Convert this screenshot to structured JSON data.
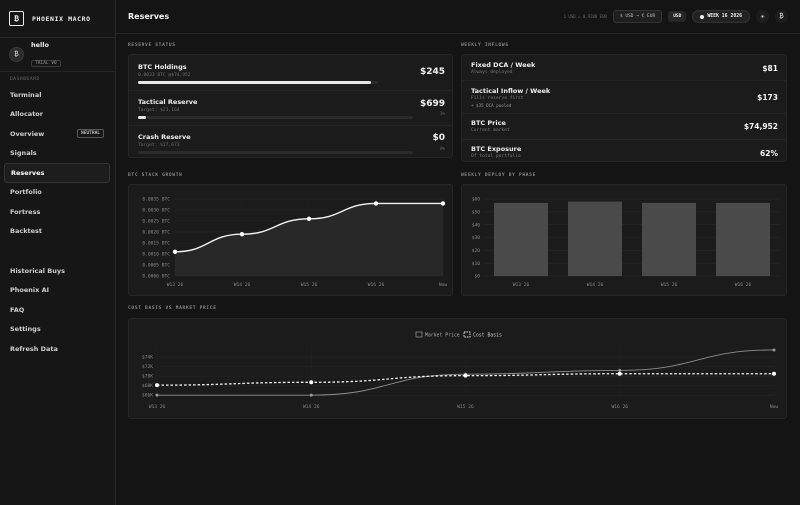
{
  "app": {
    "brand": "PHOENIX MACRO",
    "logo_glyph": "₿"
  },
  "user": {
    "avatar_glyph": "₿",
    "name": "hello",
    "badge": "TRIAL V0"
  },
  "sidebar": {
    "section_label": "DASHBOARD",
    "items": [
      {
        "label": "Terminal"
      },
      {
        "label": "Allocator"
      },
      {
        "label": "Overview",
        "badge": "NEUTRAL"
      },
      {
        "label": "Signals"
      },
      {
        "label": "Reserves",
        "active": true
      },
      {
        "label": "Portfolio"
      },
      {
        "label": "Fortress"
      },
      {
        "label": "Backtest"
      }
    ],
    "lower_items": [
      {
        "label": "Historical Buys"
      },
      {
        "label": "Phoenix AI"
      },
      {
        "label": "FAQ"
      },
      {
        "label": "Settings"
      },
      {
        "label": "Refresh Data"
      }
    ]
  },
  "header": {
    "title": "Reserves",
    "rate": "1 USD = 0.9200 EUR",
    "currency_toggle": "$ USD → € EUR",
    "currency": "USD",
    "week": "WEEK 16 2026",
    "theme_icon": "sun-icon",
    "btc_icon": "bitcoin-icon",
    "theme_glyph": "☀",
    "btc_glyph": "₿"
  },
  "reserve_status": {
    "title": "RESERVE STATUS",
    "rows": [
      {
        "name": "BTC Holdings",
        "sub": "0.0033 BTC @$74,952",
        "value": "$245",
        "pct": "",
        "progress": 0.97
      },
      {
        "name": "Tactical Reserve",
        "sub": "Target: $21,164",
        "value": "$699",
        "pct": "3%",
        "progress": 0.03
      },
      {
        "name": "Crash Reserve",
        "sub": "Target: $17,673",
        "value": "$0",
        "pct": "0%",
        "progress": 0
      }
    ]
  },
  "weekly_inflows": {
    "title": "WEEKLY INFLOWS",
    "rows": [
      {
        "name": "Fixed DCA / Week",
        "sub": "Always deployed",
        "sub2": "",
        "value": "$81"
      },
      {
        "name": "Tactical Inflow / Week",
        "sub": "Fills reserve first",
        "sub2": "+ $35 DCA pooled",
        "value": "$173"
      },
      {
        "name": "BTC Price",
        "sub": "Current market",
        "sub2": "",
        "value": "$74,952"
      },
      {
        "name": "BTC Exposure",
        "sub": "Of total portfolio",
        "sub2": "",
        "value": "62%"
      }
    ]
  },
  "charts": {
    "stack_title": "BTC STACK GROWTH",
    "deploy_title": "WEEKLY DEPLOY BY PHASE",
    "basis_title": "COST BASIS VS MARKET PRICE"
  },
  "chart_data": [
    {
      "type": "area",
      "categories": [
        "W13 26",
        "W14 26",
        "W15 26",
        "W16 26",
        "Now"
      ],
      "values": [
        0.0011,
        0.0019,
        0.0026,
        0.0033,
        0.0033
      ],
      "ticks": [
        "0.0035 BTC",
        "0.0030 BTC",
        "0.0025 BTC",
        "0.0020 BTC",
        "0.0015 BTC",
        "0.0010 BTC",
        "0.0005 BTC",
        "0.0000 BTC"
      ],
      "ylim": [
        0,
        0.0035
      ],
      "grid": true
    },
    {
      "type": "bar",
      "categories": [
        "W13 26",
        "W14 26",
        "W15 26",
        "W16 26"
      ],
      "values": [
        57,
        58,
        57,
        57
      ],
      "ticks": [
        "$60",
        "$50",
        "$40",
        "$30",
        "$20",
        "$10",
        "$0"
      ],
      "ylim": [
        0,
        60
      ],
      "grid": true
    },
    {
      "type": "line",
      "categories": [
        "W13 26",
        "W14 26",
        "W15 26",
        "W16 26",
        "Now"
      ],
      "series": [
        {
          "name": "Market Price",
          "values": [
            66000,
            66000,
            70400,
            71200,
            75500
          ]
        },
        {
          "name": "Cost Basis",
          "values": [
            68100,
            68700,
            70100,
            70500,
            70500
          ]
        }
      ],
      "ticks": [
        "$74K",
        "$72K",
        "$70K",
        "$68K",
        "$66K"
      ],
      "ylim": [
        65400,
        75700
      ],
      "legend": "top-center",
      "grid": true
    }
  ]
}
